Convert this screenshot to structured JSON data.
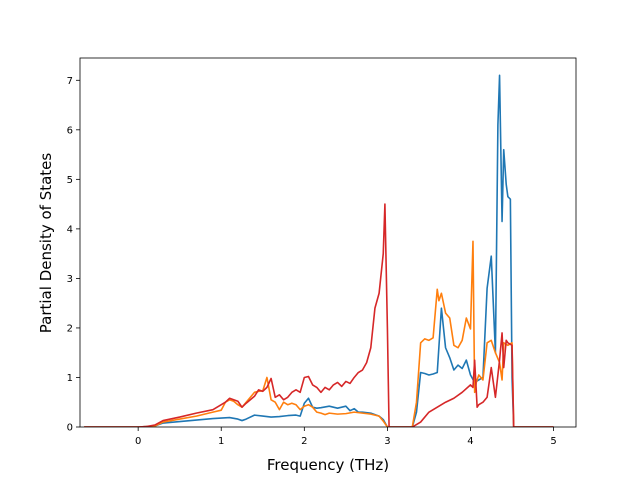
{
  "chart_data": {
    "type": "line",
    "title": "",
    "xlabel": "Frequency (THz)",
    "ylabel": "Partial Density of States",
    "xlim": [
      -0.7,
      5.27
    ],
    "ylim": [
      0,
      7.45
    ],
    "xticks": [
      0,
      1,
      2,
      3,
      4,
      5
    ],
    "yticks": [
      0,
      1,
      2,
      3,
      4,
      5,
      6,
      7
    ],
    "grid": false,
    "colors": {
      "blue": "#1f77b4",
      "orange": "#ff7f0e",
      "green": "#2ca02c",
      "red": "#d62728"
    },
    "series": [
      {
        "color": "#1f77b4",
        "x": [
          -0.65,
          0.0,
          0.1,
          0.2,
          0.3,
          0.5,
          0.7,
          0.9,
          1.0,
          1.1,
          1.2,
          1.25,
          1.3,
          1.4,
          1.5,
          1.6,
          1.7,
          1.8,
          1.9,
          1.95,
          2.0,
          2.05,
          2.1,
          2.15,
          2.2,
          2.3,
          2.4,
          2.5,
          2.55,
          2.6,
          2.65,
          2.7,
          2.8,
          2.9,
          2.95,
          3.0,
          3.02,
          3.3,
          3.35,
          3.4,
          3.45,
          3.5,
          3.55,
          3.6,
          3.65,
          3.7,
          3.75,
          3.8,
          3.85,
          3.9,
          3.95,
          4.0,
          4.05,
          4.1,
          4.15,
          4.2,
          4.25,
          4.3,
          4.33,
          4.35,
          4.38,
          4.4,
          4.43,
          4.45,
          4.48,
          4.5,
          4.52,
          5.0
        ],
        "y": [
          0,
          0,
          0.01,
          0.02,
          0.08,
          0.11,
          0.14,
          0.17,
          0.18,
          0.19,
          0.16,
          0.13,
          0.16,
          0.24,
          0.22,
          0.2,
          0.21,
          0.23,
          0.24,
          0.22,
          0.48,
          0.58,
          0.4,
          0.38,
          0.39,
          0.42,
          0.38,
          0.42,
          0.33,
          0.37,
          0.3,
          0.3,
          0.28,
          0.22,
          0.15,
          0,
          0,
          0,
          0.3,
          1.1,
          1.08,
          1.05,
          1.07,
          1.1,
          2.4,
          1.6,
          1.4,
          1.15,
          1.25,
          1.18,
          1.35,
          1.05,
          0.9,
          0.95,
          1.0,
          2.8,
          3.45,
          1.5,
          6.1,
          7.1,
          4.15,
          5.6,
          4.9,
          4.65,
          4.6,
          1.0,
          0,
          0
        ]
      },
      {
        "color": "#ff7f0e",
        "x": [
          -0.65,
          0.0,
          0.1,
          0.2,
          0.3,
          0.5,
          0.7,
          0.9,
          1.0,
          1.05,
          1.1,
          1.15,
          1.2,
          1.25,
          1.3,
          1.4,
          1.45,
          1.5,
          1.55,
          1.6,
          1.65,
          1.7,
          1.75,
          1.8,
          1.85,
          1.9,
          1.95,
          2.0,
          2.05,
          2.1,
          2.15,
          2.2,
          2.25,
          2.3,
          2.4,
          2.5,
          2.6,
          2.7,
          2.8,
          2.9,
          2.95,
          3.0,
          3.02,
          3.3,
          3.35,
          3.4,
          3.45,
          3.5,
          3.55,
          3.6,
          3.62,
          3.65,
          3.7,
          3.75,
          3.8,
          3.85,
          3.9,
          3.95,
          4.0,
          4.03,
          4.05,
          4.07,
          4.1,
          4.15,
          4.2,
          4.25,
          4.3,
          4.35,
          4.38,
          4.4,
          4.45,
          4.5,
          4.52,
          5.0
        ],
        "y": [
          0,
          0,
          0.01,
          0.02,
          0.1,
          0.16,
          0.22,
          0.3,
          0.34,
          0.5,
          0.55,
          0.52,
          0.45,
          0.4,
          0.5,
          0.7,
          0.72,
          0.73,
          1.0,
          0.55,
          0.5,
          0.35,
          0.5,
          0.45,
          0.48,
          0.45,
          0.35,
          0.42,
          0.45,
          0.4,
          0.3,
          0.28,
          0.25,
          0.28,
          0.26,
          0.27,
          0.3,
          0.28,
          0.26,
          0.22,
          0.12,
          0,
          0,
          0,
          0.5,
          1.7,
          1.78,
          1.75,
          1.8,
          2.78,
          2.55,
          2.7,
          2.3,
          2.2,
          1.65,
          1.6,
          1.75,
          2.2,
          1.98,
          3.75,
          0.7,
          0.9,
          1.05,
          0.95,
          1.7,
          1.75,
          1.5,
          1.3,
          0.95,
          1.7,
          1.65,
          1.7,
          0,
          0
        ]
      },
      {
        "color": "#d62728",
        "x": [
          -0.65,
          0.0,
          0.1,
          0.2,
          0.3,
          0.5,
          0.7,
          0.9,
          1.0,
          1.05,
          1.1,
          1.15,
          1.2,
          1.25,
          1.3,
          1.4,
          1.45,
          1.5,
          1.55,
          1.6,
          1.65,
          1.7,
          1.75,
          1.8,
          1.85,
          1.9,
          1.95,
          2.0,
          2.05,
          2.1,
          2.15,
          2.2,
          2.25,
          2.3,
          2.35,
          2.4,
          2.45,
          2.5,
          2.55,
          2.6,
          2.65,
          2.7,
          2.75,
          2.8,
          2.85,
          2.9,
          2.95,
          2.97,
          3.0,
          3.02,
          3.3,
          3.4,
          3.5,
          3.6,
          3.7,
          3.8,
          3.9,
          4.0,
          4.03,
          4.05,
          4.08,
          4.1,
          4.15,
          4.2,
          4.25,
          4.3,
          4.35,
          4.38,
          4.4,
          4.43,
          4.45,
          4.5,
          4.52,
          5.0
        ],
        "y": [
          0,
          0,
          0.01,
          0.04,
          0.13,
          0.2,
          0.28,
          0.35,
          0.45,
          0.5,
          0.58,
          0.55,
          0.52,
          0.4,
          0.48,
          0.62,
          0.75,
          0.72,
          0.8,
          0.98,
          0.6,
          0.65,
          0.55,
          0.6,
          0.7,
          0.75,
          0.7,
          1.0,
          1.02,
          0.85,
          0.8,
          0.7,
          0.8,
          0.75,
          0.85,
          0.9,
          0.82,
          0.92,
          0.88,
          1.0,
          1.1,
          1.15,
          1.3,
          1.6,
          2.4,
          2.7,
          3.5,
          4.5,
          2.0,
          0,
          0,
          0.1,
          0.3,
          0.4,
          0.5,
          0.58,
          0.7,
          0.85,
          0.8,
          1.35,
          0.4,
          0.45,
          0.5,
          0.6,
          1.2,
          0.6,
          1.35,
          1.9,
          1.2,
          1.75,
          1.7,
          1.65,
          0,
          0
        ]
      }
    ]
  }
}
